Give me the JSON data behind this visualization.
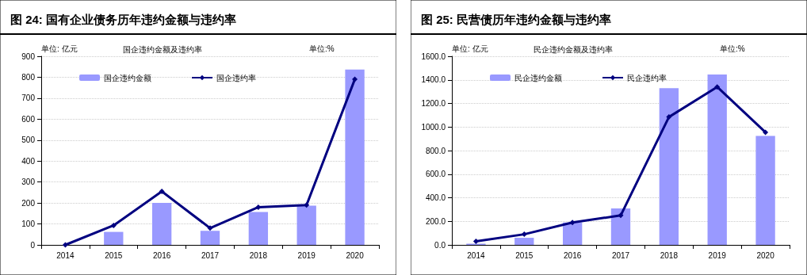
{
  "chart_data": [
    {
      "type": "bar",
      "title": "图 24: 国有企业债务历年违约金额与违约率",
      "subtitle": "国企违约金额及违约率",
      "annotations": [
        "单位: 亿元",
        "单位:%"
      ],
      "categories": [
        "2014",
        "2015",
        "2016",
        "2017",
        "2018",
        "2019",
        "2020"
      ],
      "series": [
        {
          "name": "国企违约金额",
          "color": "#9999ff",
          "values": [
            0,
            62,
            200,
            67,
            157,
            187,
            837
          ]
        },
        {
          "name": "国企违约率",
          "type": "line",
          "color": "#000080",
          "values": [
            0,
            93,
            255,
            80,
            180,
            190,
            790
          ]
        }
      ],
      "ylim": [
        0,
        900
      ],
      "yticks": [
        0,
        100,
        200,
        300,
        400,
        500,
        600,
        700,
        800,
        900
      ],
      "grid": "y",
      "legend": "top left",
      "marker": "diamond",
      "line_style": "solid"
    },
    {
      "type": "bar",
      "title": "图 25: 民营债历年违约金额与违约率",
      "subtitle": "民企违约金额及违约率",
      "annotations": [
        "单位: 亿元",
        "单位:%"
      ],
      "categories": [
        "2014",
        "2015",
        "2016",
        "2017",
        "2018",
        "2019",
        "2020"
      ],
      "series": [
        {
          "name": "民企违约金额",
          "color": "#9999ff",
          "values": [
            10,
            60,
            190,
            310,
            1330,
            1445,
            925
          ]
        },
        {
          "name": "民企违约率",
          "type": "line",
          "color": "#000080",
          "values": [
            30,
            90,
            190,
            250,
            1085,
            1340,
            955
          ]
        }
      ],
      "ylim": [
        0,
        1600
      ],
      "yticks": [
        {
          "value": 0,
          "label": "0.0"
        },
        {
          "value": 200,
          "label": "200.0"
        },
        {
          "value": 400,
          "label": "400.0"
        },
        {
          "value": 600,
          "label": "600.0"
        },
        {
          "value": 800,
          "label": "800.0"
        },
        {
          "value": 1000,
          "label": "1000.0"
        },
        {
          "value": 1200,
          "label": "1200.0"
        },
        {
          "value": 1400,
          "label": "1400.0"
        },
        {
          "value": 1600,
          "label": "1600.0"
        }
      ],
      "grid": "y",
      "legend": "top left",
      "marker": "diamond",
      "line_style": "solid"
    }
  ]
}
